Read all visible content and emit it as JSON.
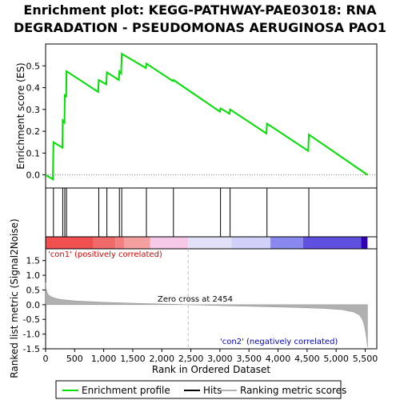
{
  "chart_data": {
    "type": "line",
    "title_line1": "Enrichment plot: KEGG-PATHWAY-PAE03018: RNA",
    "title_line2": "DEGRADATION - PSEUDOMONAS AERUGINOSA PAO1",
    "es_ylabel": "Enrichment score (ES)",
    "metric_ylabel": "Ranked list metric (Signal2Noise)",
    "xlabel": "Rank in Ordered Dataset",
    "xlim": [
      0,
      5700
    ],
    "es_ylim": [
      -0.06,
      0.6
    ],
    "metric_ylim": [
      -1.5,
      1.9
    ],
    "x_ticks": [
      "0",
      "500",
      "1,000",
      "1,500",
      "2,000",
      "2,500",
      "3,000",
      "3,500",
      "4,000",
      "4,500",
      "5,000",
      "5,500"
    ],
    "x_tick_values": [
      0,
      500,
      1000,
      1500,
      2000,
      2500,
      3000,
      3500,
      4000,
      4500,
      5000,
      5500
    ],
    "es_ticks": [
      "0.0",
      "0.1",
      "0.2",
      "0.3",
      "0.4",
      "0.5"
    ],
    "es_tick_values": [
      0.0,
      0.1,
      0.2,
      0.3,
      0.4,
      0.5
    ],
    "metric_ticks": [
      "1.5",
      "1.0",
      "0.5",
      "0.0",
      "-0.5",
      "-1.0",
      "-1.5"
    ],
    "metric_tick_values": [
      1.5,
      1.0,
      0.5,
      0.0,
      -0.5,
      -1.0,
      -1.5
    ],
    "hits": [
      135,
      295,
      330,
      360,
      915,
      1055,
      1270,
      1310,
      1735,
      2200,
      3010,
      3175,
      3810,
      4530
    ],
    "es_x": [
      0,
      125,
      135,
      290,
      295,
      325,
      330,
      355,
      360,
      905,
      915,
      1045,
      1055,
      1260,
      1270,
      1300,
      1310,
      1725,
      1735,
      2190,
      2200,
      3000,
      3010,
      3165,
      3175,
      3800,
      3810,
      4520,
      4530,
      5540
    ],
    "es_y": [
      0.0,
      -0.02,
      0.15,
      0.125,
      0.25,
      0.24,
      0.365,
      0.36,
      0.475,
      0.38,
      0.435,
      0.415,
      0.47,
      0.435,
      0.475,
      0.465,
      0.555,
      0.49,
      0.51,
      0.43,
      0.435,
      0.29,
      0.305,
      0.28,
      0.3,
      0.19,
      0.235,
      0.11,
      0.185,
      0.0
    ],
    "metric_x": [
      0,
      10,
      30,
      60,
      100,
      150,
      200,
      300,
      400,
      500,
      700,
      900,
      1200,
      1500,
      1800,
      2100,
      2454,
      2800,
      3200,
      3600,
      4000,
      4400,
      4800,
      5100,
      5300,
      5400,
      5450,
      5480,
      5500,
      5520,
      5540
    ],
    "metric_y": [
      0.75,
      0.55,
      0.4,
      0.32,
      0.27,
      0.23,
      0.2,
      0.17,
      0.15,
      0.13,
      0.11,
      0.09,
      0.07,
      0.05,
      0.035,
      0.02,
      0.0,
      -0.02,
      -0.04,
      -0.06,
      -0.08,
      -0.1,
      -0.13,
      -0.17,
      -0.25,
      -0.35,
      -0.5,
      -0.65,
      -0.85,
      -1.1,
      -1.45
    ],
    "zero_cross": 2454,
    "zero_cross_label": "Zero cross at 2454",
    "pos_label": "'con1' (positively correlated)",
    "neg_label": "'con2' (negatively correlated)",
    "colors": {
      "es_line": "#00e000",
      "hit": "#000000",
      "metric_fill": "#b0b0b0",
      "pos_text": "#e00000",
      "neg_text": "#0000c8",
      "zero_line": "#c0c0c0"
    },
    "heat_segments": [
      {
        "from": 0,
        "to": 820,
        "color": "#f05050"
      },
      {
        "from": 820,
        "to": 1200,
        "color": "#f06a6a"
      },
      {
        "from": 1200,
        "to": 1350,
        "color": "#f28080"
      },
      {
        "from": 1350,
        "to": 1800,
        "color": "#f5a0a0"
      },
      {
        "from": 1800,
        "to": 2454,
        "color": "#f8c8e8"
      },
      {
        "from": 2454,
        "to": 3200,
        "color": "#e0e0f8"
      },
      {
        "from": 3200,
        "to": 3870,
        "color": "#d0d0f8"
      },
      {
        "from": 3870,
        "to": 4430,
        "color": "#8888ee"
      },
      {
        "from": 4430,
        "to": 5430,
        "color": "#6050e0"
      },
      {
        "from": 5430,
        "to": 5540,
        "color": "#3000b0"
      }
    ],
    "legend": [
      "Enrichment profile",
      "Hits",
      "Ranking metric scores"
    ],
    "grid": false
  }
}
